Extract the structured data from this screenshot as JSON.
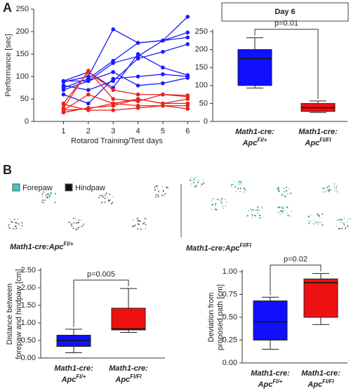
{
  "panels": [
    "A",
    "B"
  ],
  "footprints": {
    "legend": [
      {
        "name": "Forepaw",
        "color": "#3cc8c0"
      },
      {
        "name": "Hindpaw",
        "color": "#111111"
      }
    ],
    "captions": [
      {
        "base": "Math1-cre:Apc",
        "sup": "Fl/+"
      },
      {
        "base": "Math1-cre:Apc",
        "sup": "Fl/Fl"
      }
    ]
  },
  "chart_data": [
    {
      "type": "line",
      "x_label": "Rotarod Training/Test days",
      "y_label": "Performance [sec]",
      "x": [
        1,
        2,
        3,
        4,
        5,
        6
      ],
      "xlim": [
        -0.2,
        6.5
      ],
      "xticks": [
        1,
        2,
        3,
        4,
        5,
        6
      ],
      "ylim": [
        0,
        250
      ],
      "yticks": [
        0,
        50,
        100,
        150,
        200,
        250
      ],
      "series": [
        {
          "color": "#1a1aff",
          "values": [
            88,
            100,
            205,
            175,
            180,
            233
          ]
        },
        {
          "color": "#1a1aff",
          "values": [
            75,
            95,
            135,
            175,
            180,
            198
          ]
        },
        {
          "color": "#1a1aff",
          "values": [
            70,
            90,
            130,
            145,
            180,
            187
          ]
        },
        {
          "color": "#1a1aff",
          "values": [
            80,
            70,
            90,
            140,
            155,
            172
          ]
        },
        {
          "color": "#1a1aff",
          "values": [
            90,
            110,
            75,
            150,
            120,
            103
          ]
        },
        {
          "color": "#1a1aff",
          "values": [
            60,
            40,
            95,
            100,
            105,
            100
          ]
        },
        {
          "color": "#1a1aff",
          "values": [
            90,
            90,
            110,
            80,
            85,
            97
          ]
        },
        {
          "color": "#e8231d",
          "values": [
            40,
            110,
            70,
            60,
            60,
            55
          ]
        },
        {
          "color": "#e8231d",
          "values": [
            30,
            113,
            50,
            45,
            60,
            58
          ]
        },
        {
          "color": "#e8231d",
          "values": [
            25,
            60,
            40,
            50,
            40,
            50
          ]
        },
        {
          "color": "#e8231d",
          "values": [
            20,
            30,
            35,
            50,
            40,
            40
          ]
        },
        {
          "color": "#e8231d",
          "values": [
            25,
            28,
            40,
            35,
            35,
            28
          ]
        },
        {
          "color": "#e8231d",
          "values": [
            38,
            25,
            25,
            30,
            35,
            35
          ]
        }
      ]
    },
    {
      "type": "box",
      "title": "Day 6",
      "annotation": "p=0.01",
      "ylim": [
        0,
        250
      ],
      "yticks": [
        0,
        50,
        100,
        150,
        200,
        250
      ],
      "categories": [
        {
          "line1": "Math1-cre:",
          "base": "Apc",
          "sup": "Fl/+"
        },
        {
          "line1": "Math1-cre:",
          "base": "Apc",
          "sup": "Fl/Fl"
        }
      ],
      "boxes": [
        {
          "color": "#1010ff",
          "min": 93,
          "q1": 100,
          "median": 175,
          "q3": 200,
          "max": 233
        },
        {
          "color": "#ee1111",
          "min": 25,
          "q1": 28,
          "median": 38,
          "q3": 50,
          "max": 57
        }
      ]
    },
    {
      "type": "box",
      "annotation": "p=0.005",
      "y_label": [
        "Distance between",
        "forepaw and hindpaw [cm]"
      ],
      "ylim": [
        0,
        2.5
      ],
      "yticks": [
        {
          "value": 0,
          "label": "0.00"
        },
        {
          "value": 0.5,
          "label": "0.50"
        },
        {
          "value": 1,
          "label": "1.00"
        },
        {
          "value": 1.5,
          "label": "1.50"
        },
        {
          "value": 2,
          "label": "2.00"
        },
        {
          "value": 2.5,
          "label": "2.50"
        }
      ],
      "categories": [
        {
          "line1": "Math1-cre:",
          "base": "Apc",
          "sup": "Fl/+"
        },
        {
          "line1": "Math1-cre:",
          "base": "Apc",
          "sup": "Fl/Fl"
        }
      ],
      "boxes": [
        {
          "color": "#1010ff",
          "min": 0.15,
          "q1": 0.33,
          "median": 0.5,
          "q3": 0.65,
          "max": 0.82
        },
        {
          "color": "#ee1111",
          "min": 0.73,
          "q1": 0.8,
          "median": 0.83,
          "q3": 1.42,
          "max": 1.98
        }
      ]
    },
    {
      "type": "box",
      "annotation": "p=0.02",
      "y_label": [
        "Deviation from",
        "proposed path [cm]"
      ],
      "ylim": [
        0,
        1
      ],
      "yticks": [
        {
          "value": 0,
          "label": "0.00"
        },
        {
          "value": 0.25,
          "label": "0.25"
        },
        {
          "value": 0.5,
          "label": "0.50"
        },
        {
          "value": 0.75,
          "label": "0.75"
        },
        {
          "value": 1,
          "label": "1.00"
        }
      ],
      "categories": [
        {
          "line1": "Math1-cre:",
          "base": "Apc",
          "sup": "Fl/+"
        },
        {
          "line1": "Math1-cre:",
          "base": "Apc",
          "sup": "Fl/Fl"
        }
      ],
      "boxes": [
        {
          "color": "#1010ff",
          "min": 0.15,
          "q1": 0.25,
          "median": 0.45,
          "q3": 0.68,
          "max": 0.72
        },
        {
          "color": "#ee1111",
          "min": 0.42,
          "q1": 0.5,
          "median": 0.88,
          "q3": 0.92,
          "max": 0.98
        }
      ]
    }
  ]
}
